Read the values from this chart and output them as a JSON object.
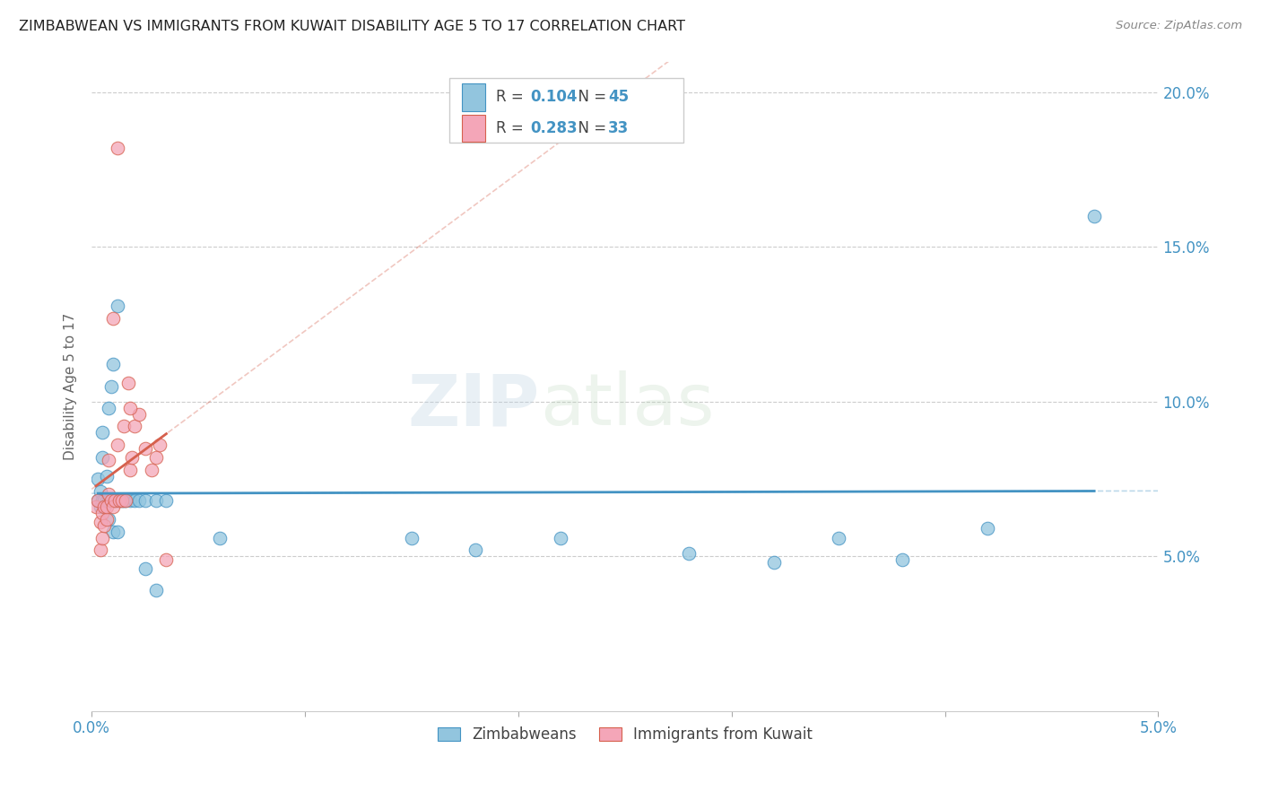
{
  "title": "ZIMBABWEAN VS IMMIGRANTS FROM KUWAIT DISABILITY AGE 5 TO 17 CORRELATION CHART",
  "source": "Source: ZipAtlas.com",
  "ylabel": "Disability Age 5 to 17",
  "xlim": [
    0.0,
    0.05
  ],
  "ylim": [
    0.0,
    0.21
  ],
  "ytick_labels": [
    "5.0%",
    "10.0%",
    "15.0%",
    "20.0%"
  ],
  "ytick_values": [
    0.05,
    0.1,
    0.15,
    0.2
  ],
  "xtick_values": [
    0.0,
    0.01,
    0.02,
    0.03,
    0.04,
    0.05
  ],
  "xtick_labels": [
    "0.0%",
    "",
    "",
    "",
    "",
    "5.0%"
  ],
  "legend_R1": "0.104",
  "legend_N1": "45",
  "legend_R2": "0.283",
  "legend_N2": "33",
  "color_blue": "#92c5de",
  "color_pink": "#f4a6b8",
  "color_blue_text": "#4393c3",
  "color_pink_text": "#d6604d",
  "color_blue_line": "#4393c3",
  "color_pink_line": "#d6604d",
  "watermark_zip": "ZIP",
  "watermark_atlas": "atlas",
  "label_blue": "Zimbabweans",
  "label_pink": "Immigrants from Kuwait",
  "blue_x": [
    0.0003,
    0.0003,
    0.0004,
    0.0004,
    0.0005,
    0.0005,
    0.0005,
    0.0006,
    0.0006,
    0.0007,
    0.0007,
    0.0008,
    0.0008,
    0.0009,
    0.0009,
    0.001,
    0.001,
    0.0011,
    0.0012,
    0.0012,
    0.0013,
    0.0014,
    0.0015,
    0.0016,
    0.0018,
    0.002,
    0.0022,
    0.0025,
    0.003,
    0.0035,
    0.015,
    0.018,
    0.022,
    0.028,
    0.032,
    0.035,
    0.038,
    0.042,
    0.047,
    0.0008,
    0.001,
    0.0012,
    0.0025,
    0.003,
    0.006
  ],
  "blue_y": [
    0.068,
    0.075,
    0.066,
    0.071,
    0.068,
    0.082,
    0.09,
    0.066,
    0.068,
    0.068,
    0.076,
    0.068,
    0.098,
    0.068,
    0.105,
    0.068,
    0.112,
    0.068,
    0.068,
    0.131,
    0.068,
    0.068,
    0.068,
    0.068,
    0.068,
    0.068,
    0.068,
    0.068,
    0.068,
    0.068,
    0.056,
    0.052,
    0.056,
    0.051,
    0.048,
    0.056,
    0.049,
    0.059,
    0.16,
    0.062,
    0.058,
    0.058,
    0.046,
    0.039,
    0.056
  ],
  "pink_x": [
    0.0002,
    0.0003,
    0.0004,
    0.0004,
    0.0005,
    0.0005,
    0.0006,
    0.0006,
    0.0007,
    0.0007,
    0.0008,
    0.0008,
    0.0009,
    0.001,
    0.001,
    0.0011,
    0.0012,
    0.0013,
    0.0014,
    0.0015,
    0.0016,
    0.0017,
    0.0018,
    0.0019,
    0.002,
    0.0022,
    0.0025,
    0.0028,
    0.003,
    0.0032,
    0.0035,
    0.0012,
    0.0018
  ],
  "pink_y": [
    0.066,
    0.068,
    0.052,
    0.061,
    0.056,
    0.064,
    0.06,
    0.066,
    0.062,
    0.066,
    0.07,
    0.081,
    0.068,
    0.066,
    0.127,
    0.068,
    0.086,
    0.068,
    0.068,
    0.092,
    0.068,
    0.106,
    0.078,
    0.082,
    0.092,
    0.096,
    0.085,
    0.078,
    0.082,
    0.086,
    0.049,
    0.182,
    0.098
  ]
}
